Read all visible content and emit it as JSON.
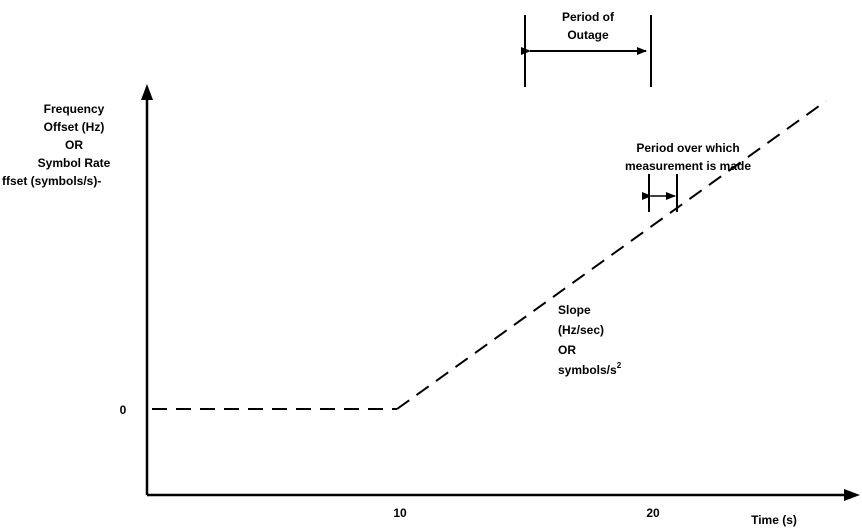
{
  "y_axis_label": [
    "Frequency",
    "Offset (Hz)",
    "OR",
    "Symbol Rate",
    "ffset (symbols/s)-"
  ],
  "y_tick_zero": "0",
  "x_tick_10": "10",
  "x_tick_20": "20",
  "x_axis_label": "Time (s)",
  "outage_label": [
    "Period of",
    "Outage"
  ],
  "measurement_label": [
    "Period over which",
    "measurement is made"
  ],
  "slope_label": [
    "Slope",
    "(Hz/sec)",
    "OR"
  ],
  "slope_unit_base": "symbols/s",
  "slope_unit_exp": "2"
}
